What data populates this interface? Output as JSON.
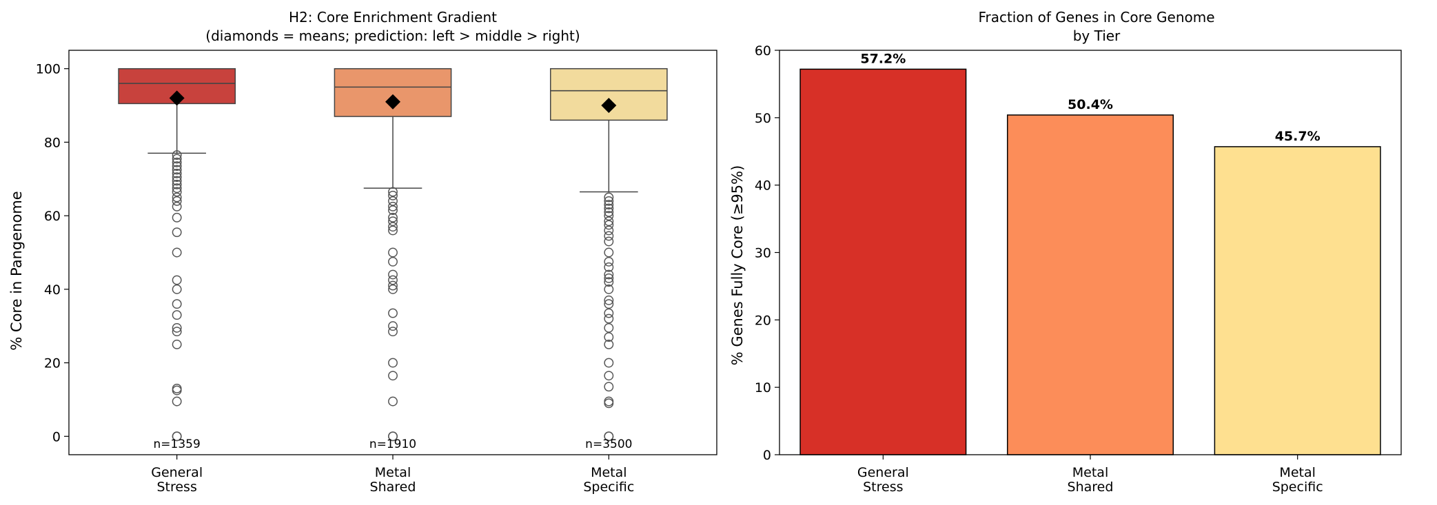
{
  "chart_data": [
    {
      "type": "box",
      "title": "H2: Core Enrichment Gradient",
      "subtitle": "(diamonds = means; prediction: left > middle > right)",
      "ylabel": "% Core in Pangenome",
      "ylim": [
        -5,
        105
      ],
      "yticks": [
        0,
        20,
        40,
        60,
        80,
        100
      ],
      "categories": [
        [
          "General",
          "Stress"
        ],
        [
          "Metal",
          "Shared"
        ],
        [
          "Metal",
          "Specific"
        ]
      ],
      "colors": [
        "#c8423d",
        "#e9966b",
        "#f2db9d"
      ],
      "boxes": [
        {
          "q1": 90.5,
          "median": 96,
          "q3": 100,
          "whisker_low": 77,
          "whisker_high": 100,
          "mean": 92,
          "outliers": [
            76.5,
            75.5,
            74.5,
            73.5,
            72.5,
            71.5,
            70.5,
            69.5,
            68.5,
            67.5,
            66.5,
            65,
            64,
            62.5,
            59.5,
            55.5,
            50,
            42.5,
            40,
            36,
            33,
            29.5,
            28.5,
            25,
            13,
            12.5,
            9.5,
            0,
            0
          ],
          "n_label": "n=1359"
        },
        {
          "q1": 87,
          "median": 95,
          "q3": 100,
          "whisker_low": 67.5,
          "whisker_high": 100,
          "mean": 91,
          "outliers": [
            66.5,
            65.5,
            64,
            62.5,
            61.5,
            59.5,
            58.5,
            57,
            56,
            50,
            47.5,
            44,
            42.5,
            41,
            40,
            33.5,
            30,
            28.5,
            20,
            16.5,
            9.5,
            0,
            0
          ],
          "n_label": "n=1910"
        },
        {
          "q1": 86,
          "median": 94,
          "q3": 100,
          "whisker_low": 66.5,
          "whisker_high": 100,
          "mean": 90,
          "outliers": [
            65,
            64,
            63,
            62,
            61,
            60,
            58.5,
            57.5,
            56,
            54.5,
            53,
            50,
            47.5,
            46,
            44,
            43,
            42,
            40,
            37,
            36,
            33.5,
            32,
            29.5,
            27,
            25,
            20,
            16.5,
            13.5,
            9.5,
            9,
            0,
            0
          ],
          "n_label": "n=3500"
        }
      ]
    },
    {
      "type": "bar",
      "title": "Fraction of Genes in Core Genome",
      "subtitle": "by Tier",
      "ylabel": "% Genes Fully Core (≥95%)",
      "ylim": [
        0,
        60
      ],
      "yticks": [
        0,
        10,
        20,
        30,
        40,
        50,
        60
      ],
      "categories": [
        [
          "General",
          "Stress"
        ],
        [
          "Metal",
          "Shared"
        ],
        [
          "Metal",
          "Specific"
        ]
      ],
      "values": [
        57.2,
        50.4,
        45.7
      ],
      "value_labels": [
        "57.2%",
        "50.4%",
        "45.7%"
      ],
      "colors": [
        "#d73027",
        "#fc8d59",
        "#fee090"
      ]
    }
  ]
}
